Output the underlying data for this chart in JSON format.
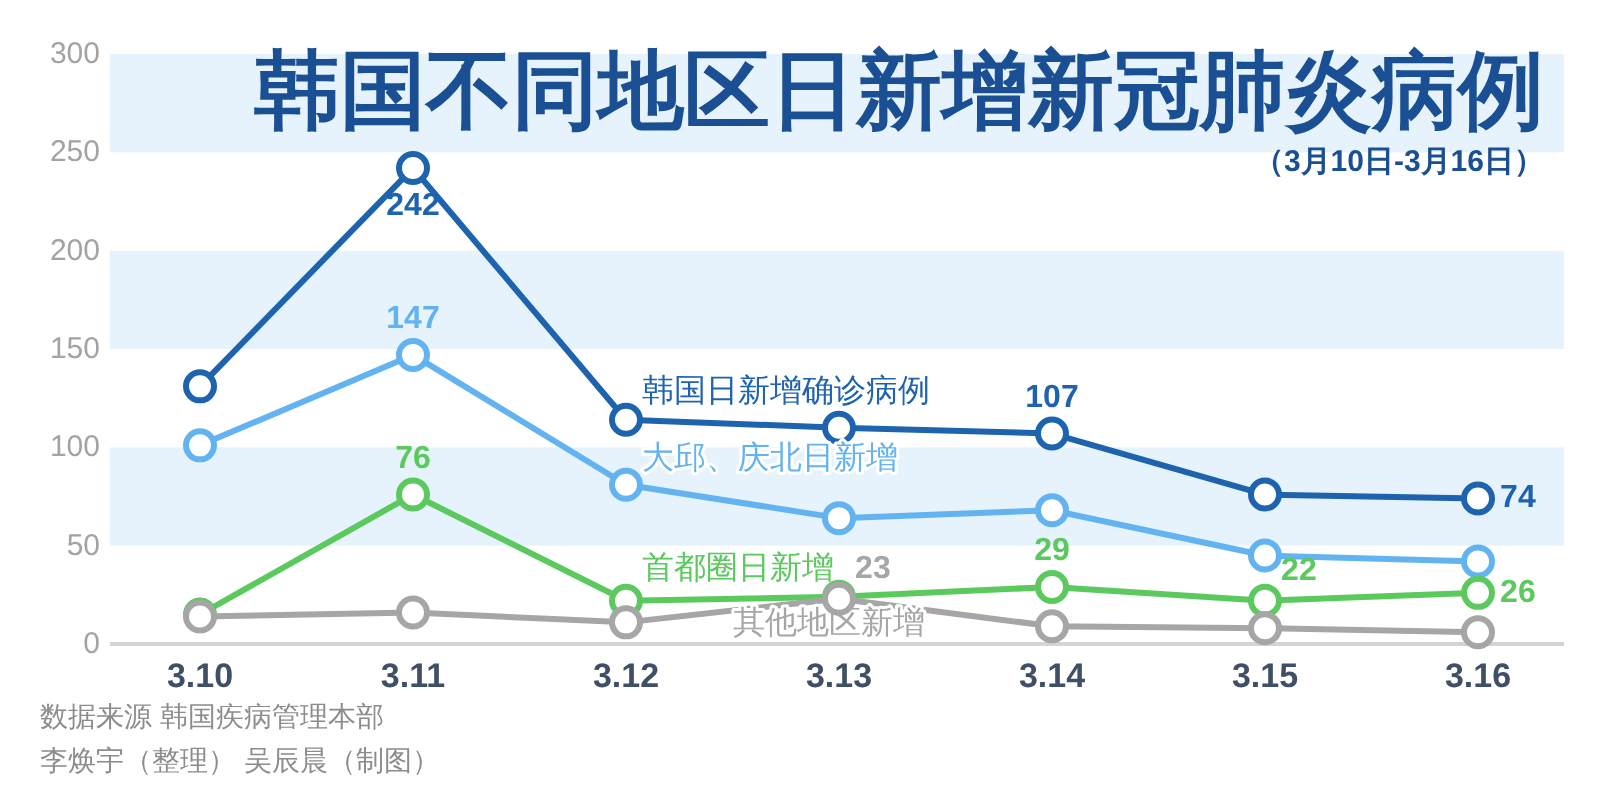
{
  "chart_data": {
    "type": "line",
    "title": "韩国不同地区日新增新冠肺炎病例",
    "subtitle": "（3月10日-3月16日）",
    "annotations": [
      "数据来源 韩国疾病管理本部",
      "李焕宇（整理） 吴辰晨（制图）"
    ],
    "categories": [
      "3.10",
      "3.11",
      "3.12",
      "3.13",
      "3.14",
      "3.15",
      "3.16"
    ],
    "series": [
      {
        "name": "韩国日新增确诊病例",
        "color": "#1e63ae",
        "values": [
          131,
          242,
          114,
          110,
          107,
          76,
          74
        ],
        "value_labels": [
          null,
          "242",
          null,
          null,
          "107",
          null,
          "74"
        ]
      },
      {
        "name": "大邱、庆北日新增",
        "color": "#63b3f0",
        "values": [
          101,
          147,
          81,
          64,
          68,
          45,
          42
        ],
        "value_labels": [
          null,
          "147",
          null,
          null,
          null,
          null,
          null
        ]
      },
      {
        "name": "首都圈日新增",
        "color": "#5bc95e",
        "values": [
          15,
          76,
          22,
          24,
          29,
          22,
          26
        ],
        "value_labels": [
          null,
          "76",
          null,
          null,
          "29",
          "22",
          "26"
        ]
      },
      {
        "name": "其他地区新增",
        "color": "#a6a6a6",
        "values": [
          14,
          16,
          11,
          23,
          9,
          8,
          6
        ],
        "value_labels": [
          null,
          null,
          null,
          "23",
          null,
          null,
          null
        ]
      }
    ],
    "marker": "circle",
    "ylim": [
      0,
      300
    ],
    "yticks": [
      0,
      50,
      100,
      150,
      200,
      250,
      300
    ],
    "bands": [
      {
        "axis": "y",
        "from": 50,
        "to": 100,
        "color": "#e6f3fd"
      },
      {
        "axis": "y",
        "from": 150,
        "to": 200,
        "color": "#e6f3fd"
      },
      {
        "axis": "y",
        "from": 250,
        "to": 300,
        "color": "#e6f3fd"
      }
    ]
  }
}
